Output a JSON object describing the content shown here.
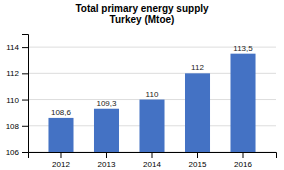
{
  "chart_data": {
    "type": "bar",
    "title": "Total primary energy supply\nTurkey (Mtoe)",
    "categories": [
      "2012",
      "2013",
      "2014",
      "2015",
      "2016"
    ],
    "values": [
      108.6,
      109.3,
      110,
      112,
      113.5
    ],
    "value_labels": [
      "108,6",
      "109,3",
      "110",
      "112",
      "113,5"
    ],
    "color": "#4472c4",
    "ylim": [
      106,
      115
    ],
    "yticks": [
      106,
      108,
      110,
      112,
      114
    ],
    "grid": true,
    "data_labels": true
  }
}
